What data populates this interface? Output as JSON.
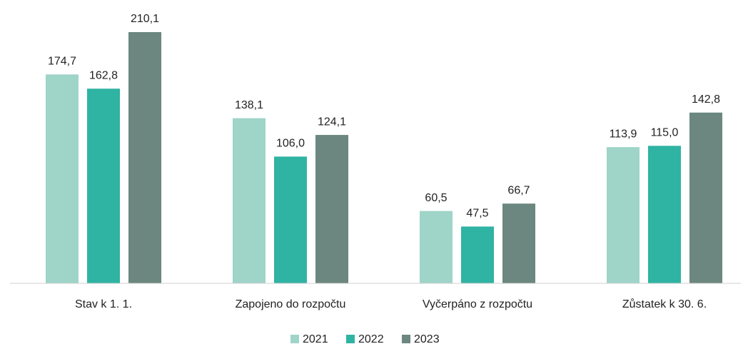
{
  "chart_data": {
    "type": "bar",
    "categories": [
      "Stav k 1. 1.",
      "Zapojeno do rozpočtu",
      "Vyčerpáno z rozpočtu",
      "Zůstatek k 30. 6."
    ],
    "series": [
      {
        "name": "2021",
        "color": "#9fd4c8",
        "values": [
          174.7,
          138.1,
          60.5,
          113.9
        ],
        "value_labels": [
          "174,7",
          "138,1",
          "60,5",
          "113,9"
        ]
      },
      {
        "name": "2022",
        "color": "#2fb3a3",
        "values": [
          162.8,
          106.0,
          47.5,
          115.0
        ],
        "value_labels": [
          "162,8",
          "106,0",
          "47,5",
          "115,0"
        ]
      },
      {
        "name": "2023",
        "color": "#6b877f",
        "values": [
          210.1,
          124.1,
          66.7,
          142.8
        ],
        "value_labels": [
          "210,1",
          "124,1",
          "66,7",
          "142,8"
        ]
      }
    ],
    "ylim": [
      0,
      220
    ],
    "legend": "bottom"
  }
}
